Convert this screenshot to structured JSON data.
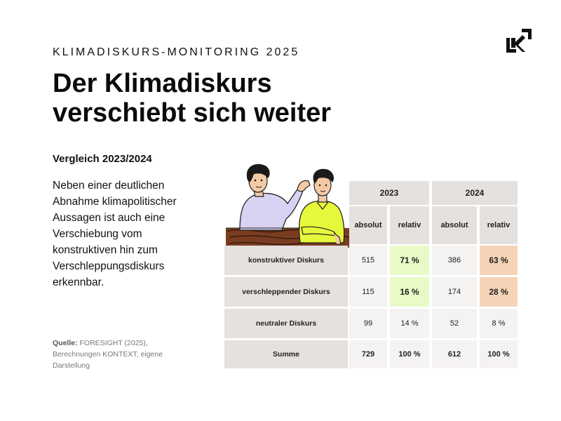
{
  "kicker": "KLIMADISKURS-MONITORING 2025",
  "title_line1": "Der Klimadiskurs",
  "title_line2": "verschiebt sich weiter",
  "subtitle": "Vergleich 2023/2024",
  "body": "Neben einer deutlichen Abnahme klimapolitischer Aussagen ist auch eine Verschiebung vom konstruktiven hin zum Verschleppungsdiskurs erkennbar.",
  "source": {
    "label": "Quelle:",
    "text": " FORESIGHT (2025), Berechnungen KONTEXT, eigene Darstellung"
  },
  "logo_icon": "kontext-logo-icon",
  "illustration_icon": "two-people-talking-illustration",
  "colors": {
    "accent_green": "#e8fbc7",
    "accent_peach": "#f6d3b6",
    "header_grey": "#e4e1de"
  },
  "table": {
    "years": [
      "2023",
      "2024"
    ],
    "subheaders": [
      "absolut",
      "relativ",
      "absolut",
      "relativ"
    ],
    "rows": [
      {
        "label": "konstruktiver Diskurs",
        "values": [
          "515",
          "71 %",
          "386",
          "63 %"
        ]
      },
      {
        "label": "verschleppender Diskurs",
        "values": [
          "115",
          "16 %",
          "174",
          "28 %"
        ]
      },
      {
        "label": "neutraler Diskurs",
        "values": [
          "99",
          "14 %",
          "52",
          "8 %"
        ]
      },
      {
        "label": "Summe",
        "values": [
          "729",
          "100 %",
          "612",
          "100 %"
        ]
      }
    ]
  }
}
